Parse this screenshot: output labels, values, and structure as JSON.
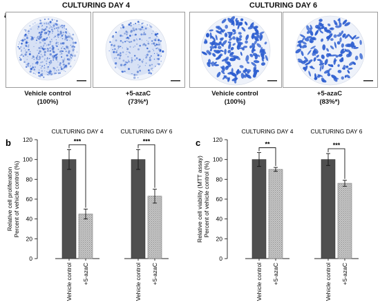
{
  "panel_a": {
    "letter": "a",
    "day4_title": "CULTURING DAY 4",
    "day6_title": "CULTURING DAY 6",
    "captions": [
      {
        "label": "Vehicle control",
        "value": "(100%)"
      },
      {
        "label": "+5-azaC",
        "value": "(73%*)"
      },
      {
        "label": "Vehicle control",
        "value": "(100%)"
      },
      {
        "label": "+5-azaC",
        "value": "(83%*)"
      }
    ]
  },
  "chart_data": [
    {
      "panel": "b",
      "type": "bar",
      "ylabel_line1": "Relative cell proliferation",
      "ylabel_line2": "Percent of vehicle control (%)",
      "ylim": [
        0,
        120
      ],
      "yticks": [
        0,
        20,
        40,
        60,
        80,
        100,
        120
      ],
      "groups": [
        {
          "title": "CULTURING DAY 4",
          "categories": [
            "Vehicle control",
            "+5-azaC"
          ],
          "values": [
            100,
            45
          ],
          "errors": [
            10,
            5
          ],
          "significance": "***"
        },
        {
          "title": "CULTURING DAY 6",
          "categories": [
            "Vehicle control",
            "+5-azaC"
          ],
          "values": [
            100,
            63
          ],
          "errors": [
            10,
            7
          ],
          "significance": "***"
        }
      ]
    },
    {
      "panel": "c",
      "type": "bar",
      "ylabel_line1": "Relative cell viability (MTT assay)",
      "ylabel_line2": "Percent of vehicle control (%)",
      "ylim": [
        0,
        120
      ],
      "yticks": [
        0,
        20,
        40,
        60,
        80,
        100,
        120
      ],
      "groups": [
        {
          "title": "CULTURING DAY 4",
          "categories": [
            "Vehicle control",
            "+5-azaC"
          ],
          "values": [
            100,
            90
          ],
          "errors": [
            7,
            2
          ],
          "significance": "**"
        },
        {
          "title": "CULTURING DAY 6",
          "categories": [
            "Vehicle control",
            "+5-azaC"
          ],
          "values": [
            100,
            76
          ],
          "errors": [
            6,
            3
          ],
          "significance": "***"
        }
      ]
    }
  ],
  "colors": {
    "control_bar": "#4f4f4f",
    "treated_bar": "#c8c8c8",
    "stain_light": "#6f8fd6",
    "stain_dark": "#2e5fd0"
  }
}
